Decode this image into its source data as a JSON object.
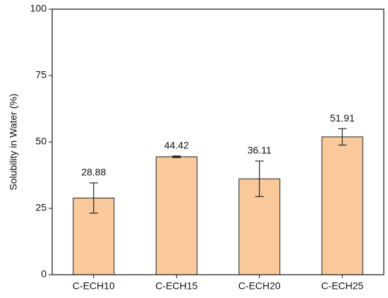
{
  "chart_data": {
    "type": "bar",
    "y_label": "Solubility in Water (%)",
    "categories": [
      "C-ECH10",
      "C-ECH15",
      "C-ECH20",
      "C-ECH25"
    ],
    "values": [
      28.88,
      44.42,
      36.11,
      51.91
    ],
    "errors": [
      5.7,
      0.3,
      6.7,
      3.1
    ],
    "color": "#f9c89b",
    "ylim": [
      0,
      100
    ],
    "yticks": [
      0,
      25,
      50,
      75,
      100
    ]
  }
}
